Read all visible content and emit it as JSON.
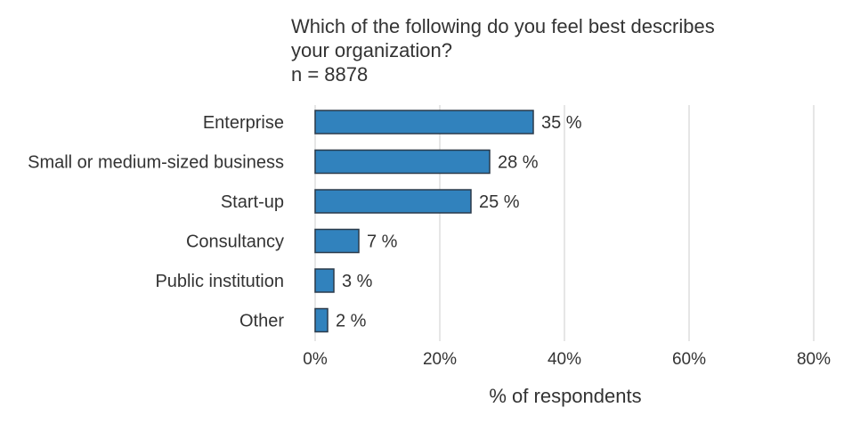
{
  "chart_data": {
    "type": "bar",
    "orientation": "horizontal",
    "title": "Which of the following do you feel best describes your organization?",
    "title_lines": [
      "Which of the following do you feel best describes",
      "your organization?"
    ],
    "subtitle": "n = 8878",
    "categories": [
      "Enterprise",
      "Small or medium-sized business",
      "Start-up",
      "Consultancy",
      "Public institution",
      "Other"
    ],
    "values": [
      35,
      28,
      25,
      7,
      3,
      2
    ],
    "value_labels": [
      "35 %",
      "28 %",
      "25 %",
      "7 %",
      "3 %",
      "2 %"
    ],
    "xlabel": "% of respondents",
    "ylabel": "",
    "xlim": [
      0,
      80
    ],
    "xticks": [
      0,
      20,
      40,
      60,
      80
    ],
    "xtick_labels": [
      "0%",
      "20%",
      "40%",
      "60%",
      "80%"
    ],
    "grid": true,
    "bar_color": "#3182bd",
    "bar_edge_color": "#2b3a4a",
    "grid_color": "#e6e6e6"
  }
}
